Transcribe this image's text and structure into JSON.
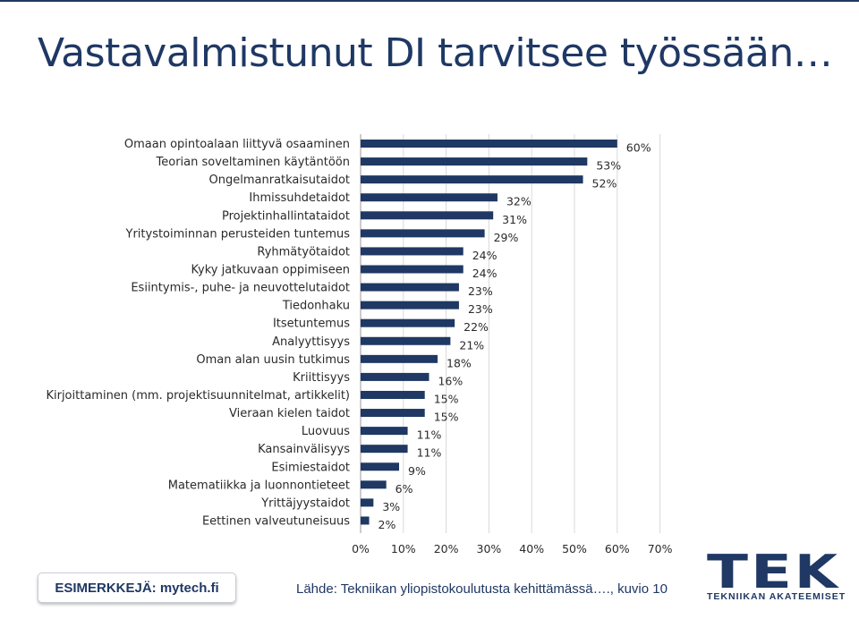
{
  "slide": {
    "title": "Vastavalmistunut DI tarvitsee työssään…",
    "footer_button": "ESIMERKKEJÄ: mytech.fi",
    "source": "Lähde: Tekniikan yliopistokoulutusta kehittämässä…., kuvio 10"
  },
  "logo": {
    "letters": [
      "T",
      "E",
      "K"
    ],
    "subtitle": "TEKNIIKAN AKATEEMISET",
    "color": "#1f3864"
  },
  "chart_data": {
    "type": "bar",
    "orientation": "horizontal",
    "categories": [
      "Omaan opintoalaan liittyvä osaaminen",
      "Teorian soveltaminen käytäntöön",
      "Ongelmanratkaisutaidot",
      "Ihmissuhdetaidot",
      "Projektinhallintataidot",
      "Yritystoiminnan perusteiden tuntemus",
      "Ryhmätyötaidot",
      "Kyky jatkuvaan oppimiseen",
      "Esiintymis-, puhe- ja neuvottelutaidot",
      "Tiedonhaku",
      "Itsetuntemus",
      "Analyyttisyys",
      "Oman alan uusin tutkimus",
      "Kriittisyys",
      "Kirjoittaminen (mm. projektisuunnitelmat, artikkelit)",
      "Vieraan kielen taidot",
      "Luovuus",
      "Kansainvälisyys",
      "Esimiestaidot",
      "Matematiikka ja luonnontieteet",
      "Yrittäjyystaidot",
      "Eettinen valveutuneisuus"
    ],
    "values": [
      60,
      53,
      52,
      32,
      31,
      29,
      24,
      24,
      23,
      23,
      22,
      21,
      18,
      16,
      15,
      15,
      11,
      11,
      9,
      6,
      3,
      2
    ],
    "data_labels": [
      "60%",
      "53%",
      "52%",
      "32%",
      "31%",
      "29%",
      "24%",
      "24%",
      "23%",
      "23%",
      "22%",
      "21%",
      "18%",
      "16%",
      "15%",
      "15%",
      "11%",
      "11%",
      "9%",
      "6%",
      "3%",
      "2%"
    ],
    "x_ticks": [
      0,
      10,
      20,
      30,
      40,
      50,
      60,
      70
    ],
    "x_tick_labels": [
      "0%",
      "10%",
      "20%",
      "30%",
      "40%",
      "50%",
      "60%",
      "70%"
    ],
    "xlim": [
      0,
      70
    ],
    "grid": "vertical",
    "bar_color": "#1f3864",
    "grid_color": "#d9d9d9",
    "title": "",
    "xlabel": "",
    "ylabel": ""
  }
}
